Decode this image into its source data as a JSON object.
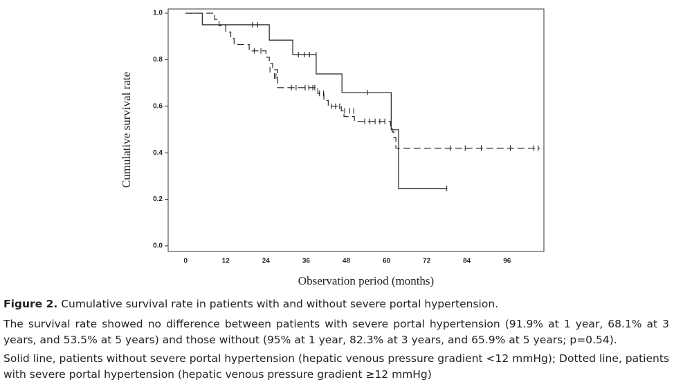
{
  "chart_data": {
    "type": "step",
    "y_label": "Cumulative survival rate",
    "x_label": "Observation period (months)",
    "xlim": [
      -5.2,
      107
    ],
    "ylim": [
      -0.024,
      1.018
    ],
    "xticks": [
      0,
      12,
      24,
      36,
      48,
      60,
      72,
      84,
      96
    ],
    "yticks": [
      {
        "value": 1.0,
        "label": "1.0"
      },
      {
        "value": 0.8,
        "label": "0.8"
      },
      {
        "value": 0.6,
        "label": "0.6"
      },
      {
        "value": 0.4,
        "label": "0.4"
      },
      {
        "value": 0.2,
        "label": "0.2"
      },
      {
        "value": 0.0,
        "label": "0.0"
      }
    ],
    "series": [
      {
        "color": "#222222",
        "style": "solid",
        "x": [
          0,
          5,
          25,
          32,
          39,
          46.7,
          61.4,
          63.6,
          78
        ],
        "values": [
          1.0,
          0.95,
          0.884,
          0.822,
          0.739,
          0.659,
          0.499,
          0.247,
          0.247
        ],
        "censored": {
          "x": [
            20,
            21.5,
            33.7,
            35.5,
            37,
            39,
            54.3,
            78
          ],
          "values": [
            0.95,
            0.95,
            0.822,
            0.822,
            0.822,
            0.822,
            0.659,
            0.247
          ]
        }
      },
      {
        "color": "#222222",
        "style": "dashed",
        "x": [
          0,
          8.7,
          10,
          12,
          13.5,
          14.5,
          19,
          24,
          25,
          26,
          27.5,
          39.5,
          41.3,
          42.6,
          46.5,
          47.3,
          50.4,
          61.2,
          61.7,
          62.2,
          62.8,
          105.8
        ],
        "values": [
          1.0,
          0.973,
          0.946,
          0.919,
          0.892,
          0.865,
          0.838,
          0.811,
          0.784,
          0.757,
          0.68,
          0.655,
          0.625,
          0.6,
          0.58,
          0.556,
          0.535,
          0.51,
          0.49,
          0.465,
          0.42,
          0.42
        ],
        "censored": {
          "x": [
            20.5,
            22.5,
            25.2,
            26.5,
            27,
            31.6,
            33,
            35.7,
            36.8,
            38,
            38.6,
            40,
            41.2,
            43.5,
            44.8,
            46,
            47.5,
            49,
            50.2,
            53.5,
            55,
            56.6,
            58,
            59.5,
            79,
            83.5,
            88.3,
            97,
            104,
            105.3
          ],
          "values": [
            0.838,
            0.838,
            0.757,
            0.73,
            0.73,
            0.68,
            0.68,
            0.68,
            0.68,
            0.68,
            0.68,
            0.655,
            0.655,
            0.6,
            0.6,
            0.6,
            0.58,
            0.58,
            0.58,
            0.535,
            0.535,
            0.535,
            0.535,
            0.535,
            0.42,
            0.42,
            0.42,
            0.42,
            0.42,
            0.42
          ]
        }
      }
    ]
  },
  "caption": {
    "label": "Figure 2.",
    "title": "Cumulative survival rate in patients with and without severe portal hypertension.",
    "paragraphs": [
      "The survival rate showed no difference between patients with severe portal hypertension (91.9% at 1 year, 68.1% at 3 years, and 53.5% at 5 years) and those without (95% at 1 year, 82.3% at 3 years, and 65.9% at 5 years; p=0.54).",
      "Solid line, patients without severe portal hypertension (hepatic venous pressure gradient <12 mmHg); Dotted line, patients with severe portal hypertension (hepatic venous pressure gradient ≥12 mmHg)"
    ]
  }
}
